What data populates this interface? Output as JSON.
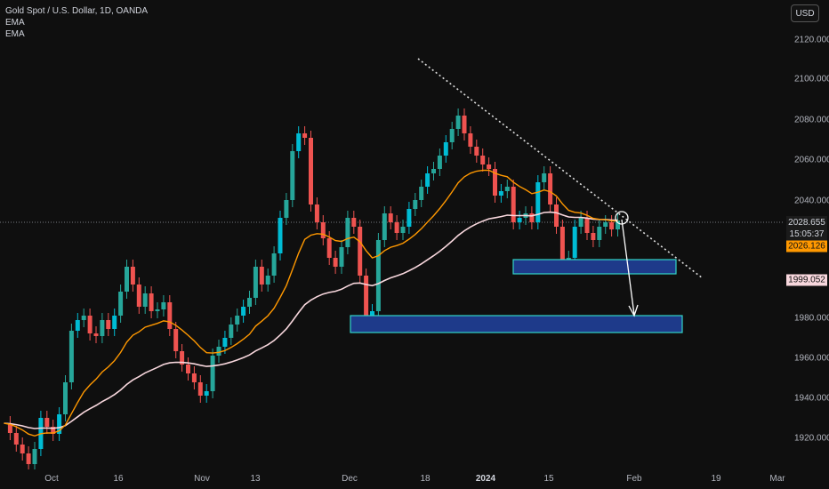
{
  "header": {
    "symbol_title": "Gold Spot / U.S. Dollar, 1D, OANDA",
    "indicator_1": "EMA",
    "indicator_2": "EMA",
    "currency_button": "USD"
  },
  "price_axis": {
    "ticks": [
      "2120.000",
      "2100.000",
      "2080.000",
      "2060.000",
      "2040.000",
      "1980.000",
      "1960.000",
      "1940.000",
      "1920.000"
    ],
    "tick_values": [
      2120,
      2100,
      2080,
      2060,
      2040,
      1980,
      1960,
      1940,
      1920
    ],
    "last_price": "2028.655",
    "countdown": "15:05:37",
    "ema_fast_label": "2026.126",
    "ema_slow_label": "1999.052"
  },
  "time_axis": {
    "labels": [
      "Oct",
      "16",
      "Nov",
      "13",
      "Dec",
      "18",
      "2024",
      "15",
      "Feb",
      "19",
      "Mar"
    ],
    "bold_label": "2024"
  },
  "colors": {
    "background": "#0f0f0f",
    "up": "#26a69a",
    "up_bright": "#00bcd4",
    "down": "#ef5350",
    "ema_fast": "#ff9800",
    "ema_slow": "#f8d7dd",
    "zone_fill": "#1e3a8a",
    "zone_border": "#33d6c8",
    "annotation": "#ffffff"
  },
  "chart_data": {
    "type": "candlestick",
    "title": "Gold Spot / U.S. Dollar, 1D, OANDA",
    "ylim": [
      1911,
      2143
    ],
    "series": [
      {
        "name": "EMA",
        "kind": "line",
        "color": "#ff9800"
      },
      {
        "name": "EMA",
        "kind": "line",
        "color": "#f8d7dd"
      }
    ],
    "annotations": {
      "trendline": {
        "from": [
          "2023-11-26",
          2122
        ],
        "to": [
          "2024-02-23",
          2001
        ],
        "style": "dotted"
      },
      "support_zones": [
        {
          "from": "2023-12-01",
          "to": "2024-02-12",
          "y_top": 1982,
          "y_bottom": 1973
        },
        {
          "from": "2023-12-28",
          "to": "2024-02-07",
          "y_top": 2006,
          "y_bottom": 1999
        }
      ],
      "arrow": {
        "from": [
          "2024-01-26",
          2030
        ],
        "to": [
          "2024-02-01",
          1983
        ]
      },
      "circle_marker": [
        "2024-01-26",
        2031
      ]
    }
  }
}
